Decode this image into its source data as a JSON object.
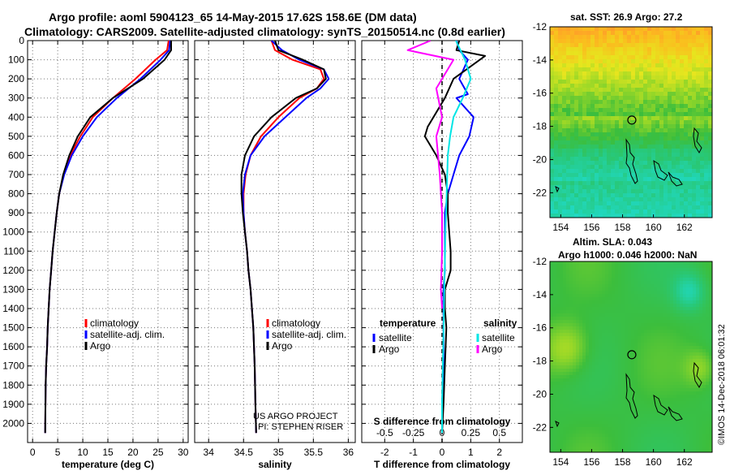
{
  "header": {
    "line1": "Argo profile: aoml 5904123_65 14-May-2015 17.62S 158.6E (DM data)",
    "line2": "Climatology: CARS2009. Satellite-adjusted climatology: synTS_20150514.nc (0.8d earlier)"
  },
  "credit": {
    "project": "US ARGO PROJECT",
    "pi": "PI: STEPHEN RISER",
    "imos": "©IMOS 14-Dec-2018 06:01:32"
  },
  "colors": {
    "climatology": "#ff0000",
    "satellite": "#0000ff",
    "argo": "#000000",
    "salinity_satellite": "#00e5e5",
    "salinity_argo": "#ff00ff"
  },
  "chart_data": [
    {
      "id": "temperature",
      "type": "line",
      "xlabel": "temperature (deg C)",
      "xlim": [
        -1,
        31
      ],
      "xticks": [
        0,
        5,
        10,
        15,
        20,
        25,
        30
      ],
      "ylim": [
        2100,
        0
      ],
      "yticks": [
        0,
        100,
        200,
        300,
        400,
        500,
        600,
        700,
        800,
        900,
        1000,
        1100,
        1200,
        1300,
        1400,
        1500,
        1600,
        1700,
        1800,
        1900,
        2000
      ],
      "ytick_labels": [
        "0",
        "100",
        "200",
        "300",
        "400",
        "500",
        "600",
        "700",
        "800",
        "900",
        "1000",
        "1100",
        "1200",
        "1300",
        "1400",
        "1500",
        "1600",
        "1700",
        "1800",
        "1900",
        "2000"
      ],
      "grid": "dotted",
      "legend": {
        "placement": "lower-center",
        "entries": [
          "climatology",
          "satellite-adj. clim.",
          "Argo"
        ]
      },
      "series": [
        {
          "name": "climatology",
          "color": "#ff0000",
          "x": [
            27.1,
            26.8,
            24.5,
            20.5,
            16.0,
            12.0,
            9.5,
            7.5,
            6.2,
            5.3,
            4.8,
            4.4,
            4.0,
            3.7,
            3.4,
            3.2,
            3.0,
            2.9,
            2.7,
            2.6,
            2.5
          ],
          "y": [
            0,
            50,
            100,
            200,
            300,
            400,
            500,
            600,
            700,
            800,
            900,
            1000,
            1100,
            1200,
            1300,
            1400,
            1500,
            1600,
            1700,
            1800,
            2050
          ]
        },
        {
          "name": "satellite-adj. clim.",
          "color": "#0000ff",
          "x": [
            27.4,
            27.2,
            25.5,
            21.5,
            16.8,
            12.8,
            10.0,
            7.8,
            6.3,
            5.3,
            4.8,
            4.4,
            4.0,
            3.7,
            3.4,
            3.2,
            3.0,
            2.9,
            2.7,
            2.6,
            2.5
          ],
          "y": [
            0,
            50,
            100,
            200,
            300,
            400,
            500,
            600,
            700,
            800,
            900,
            1000,
            1100,
            1200,
            1300,
            1400,
            1500,
            1600,
            1700,
            1800,
            2050
          ]
        },
        {
          "name": "Argo",
          "color": "#000000",
          "x": [
            27.6,
            27.6,
            26.3,
            22.0,
            16.0,
            11.5,
            9.0,
            7.3,
            6.1,
            5.3,
            4.8,
            4.4,
            4.0,
            3.7,
            3.4,
            3.2,
            3.0,
            2.9,
            2.7,
            2.6,
            2.5
          ],
          "y": [
            0,
            50,
            100,
            200,
            300,
            400,
            500,
            600,
            700,
            800,
            900,
            1000,
            1100,
            1200,
            1300,
            1400,
            1500,
            1600,
            1700,
            1800,
            2050
          ]
        }
      ]
    },
    {
      "id": "salinity",
      "type": "line",
      "xlabel": "salinity",
      "xlim": [
        33.8,
        36.1
      ],
      "xticks": [
        34,
        34.5,
        35,
        35.5,
        36
      ],
      "ylim": [
        2100,
        0
      ],
      "grid": "dotted",
      "legend": {
        "placement": "lower-right",
        "entries": [
          "climatology",
          "satellite-adj. clim.",
          "Argo"
        ]
      },
      "series": [
        {
          "name": "climatology",
          "color": "#ff0000",
          "x": [
            34.9,
            34.95,
            35.2,
            35.6,
            35.65,
            35.55,
            35.3,
            35.0,
            34.75,
            34.6,
            34.53,
            34.5,
            34.5,
            34.52,
            34.55,
            34.57,
            34.6,
            34.62,
            34.64,
            34.66,
            34.67,
            34.68
          ],
          "y": [
            0,
            50,
            100,
            150,
            200,
            250,
            300,
            400,
            500,
            600,
            700,
            800,
            900,
            1000,
            1100,
            1200,
            1300,
            1400,
            1500,
            1700,
            1900,
            2050
          ]
        },
        {
          "name": "satellite-adj. clim.",
          "color": "#0000ff",
          "x": [
            34.9,
            35.05,
            35.3,
            35.65,
            35.72,
            35.6,
            35.4,
            35.1,
            34.8,
            34.6,
            34.52,
            34.49,
            34.5,
            34.52,
            34.55,
            34.57,
            34.6,
            34.62,
            34.64,
            34.66,
            34.67,
            34.68
          ],
          "y": [
            0,
            50,
            100,
            150,
            200,
            250,
            300,
            400,
            500,
            600,
            700,
            800,
            900,
            1000,
            1100,
            1200,
            1300,
            1400,
            1500,
            1700,
            1900,
            2050
          ]
        },
        {
          "name": "Argo",
          "color": "#000000",
          "x": [
            34.95,
            35.0,
            35.35,
            35.65,
            35.68,
            35.55,
            35.25,
            34.9,
            34.65,
            34.52,
            34.47,
            34.47,
            34.49,
            34.52,
            34.55,
            34.57,
            34.6,
            34.62,
            34.64,
            34.66,
            34.67,
            34.68
          ],
          "y": [
            0,
            50,
            100,
            150,
            200,
            250,
            300,
            400,
            500,
            600,
            700,
            800,
            900,
            1000,
            1100,
            1200,
            1300,
            1400,
            1500,
            1700,
            1900,
            2050
          ]
        }
      ]
    },
    {
      "id": "difference",
      "type": "line",
      "xlabel": "T difference from climatology",
      "xlabel2": "S difference from climatology",
      "xlim": [
        -2.8,
        2.8
      ],
      "xticks": [
        -2,
        -1,
        0,
        1,
        2
      ],
      "xticks_s": [
        -0.5,
        -0.25,
        0,
        0.25,
        0.5
      ],
      "xticks_s_labels": [
        "-0.5",
        "-0.25",
        "0",
        "0.25",
        "0.5"
      ],
      "ylim": [
        2100,
        0
      ],
      "grid": "dotted",
      "legend": {
        "placement": "lower-center",
        "temperature_title": "temperature",
        "salinity_title": "salinity",
        "temperature_entries": [
          "satellite",
          "Argo"
        ],
        "salinity_entries": [
          "satellite",
          "Argo"
        ]
      },
      "series": [
        {
          "name": "satellite",
          "quantity": "temperature",
          "color": "#0000ff",
          "x": [
            0.5,
            0.6,
            0.9,
            0.6,
            0.9,
            0.5,
            1.1,
            0.95,
            0.6,
            0.4,
            0.2,
            0.1,
            0.1,
            0.1,
            0.1,
            0.05,
            0.05,
            0.05,
            0.05,
            0.0,
            0.0
          ],
          "y": [
            0,
            50,
            100,
            200,
            280,
            300,
            400,
            500,
            600,
            700,
            800,
            900,
            1000,
            1100,
            1200,
            1300,
            1400,
            1500,
            1700,
            1900,
            2050
          ]
        },
        {
          "name": "Argo",
          "quantity": "temperature",
          "color": "#000000",
          "x": [
            0.6,
            0.5,
            1.5,
            0.4,
            0.1,
            -0.3,
            -0.5,
            -0.6,
            -0.2,
            0.1,
            0.2,
            0.2,
            0.25,
            0.3,
            0.3,
            0.1,
            0.1,
            0.15,
            0.1,
            0.05,
            0.0
          ],
          "y": [
            0,
            50,
            80,
            200,
            300,
            400,
            450,
            500,
            600,
            700,
            800,
            900,
            1000,
            1100,
            1200,
            1300,
            1400,
            1500,
            1700,
            1900,
            2050
          ]
        },
        {
          "name": "satellite",
          "quantity": "salinity",
          "color": "#00e5e5",
          "x": [
            0.12,
            0.2,
            0.25,
            0.18,
            0.1,
            0.07,
            0.05,
            0.04,
            0.03,
            0.02,
            0.01,
            0.0,
            0.0
          ],
          "y": [
            0,
            100,
            200,
            300,
            400,
            500,
            600,
            800,
            1000,
            1300,
            1600,
            1900,
            2050
          ]
        },
        {
          "name": "Argo",
          "quantity": "salinity",
          "color": "#ff00ff",
          "x": [
            -0.1,
            -0.3,
            0.1,
            -0.05,
            0.0,
            -0.05,
            -0.02,
            0.0,
            0.0,
            -0.01,
            0.0
          ],
          "y": [
            0,
            50,
            100,
            250,
            400,
            500,
            700,
            900,
            1100,
            1300,
            1400
          ]
        }
      ]
    },
    {
      "id": "sst_map",
      "type": "heatmap",
      "title": "sat. SST: 26.9  Argo: 27.2",
      "xlim": [
        153.3,
        163.8
      ],
      "ylim": [
        -23.5,
        -12
      ],
      "xticks": [
        154,
        156,
        158,
        160,
        162
      ],
      "yticks": [
        -12,
        -14,
        -16,
        -18,
        -20,
        -22
      ],
      "marker": {
        "lon": 158.6,
        "lat": -17.62
      }
    },
    {
      "id": "sla_map",
      "type": "heatmap",
      "title": "Altim. SLA: 0.043",
      "subtitle": "Argo h1000: 0.046  h2000: NaN",
      "xlim": [
        153.3,
        163.8
      ],
      "ylim": [
        -23.5,
        -12
      ],
      "xticks": [
        154,
        156,
        158,
        160,
        162
      ],
      "yticks": [
        -12,
        -14,
        -16,
        -18,
        -20,
        -22
      ],
      "marker": {
        "lon": 158.6,
        "lat": -17.62
      }
    }
  ]
}
